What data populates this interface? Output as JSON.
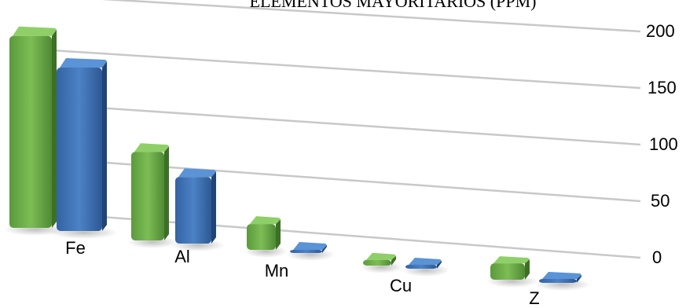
{
  "chart_data": {
    "type": "bar",
    "title": "ELEMENTOS MAYORITARIOS (PPM)",
    "categories": [
      "Fe",
      "Al",
      "Mn",
      "Cu",
      "Z"
    ],
    "series": [
      {
        "name": "",
        "color": "#6fae4b",
        "values": [
          205,
          93,
          33,
          12,
          23
        ]
      },
      {
        "name": "",
        "color": "#3f74b8",
        "values": [
          176,
          72,
          9,
          5,
          9
        ]
      }
    ],
    "yticks": [
      0,
      50,
      100,
      150,
      200
    ],
    "ylim": [
      0,
      210
    ],
    "grid": true
  }
}
